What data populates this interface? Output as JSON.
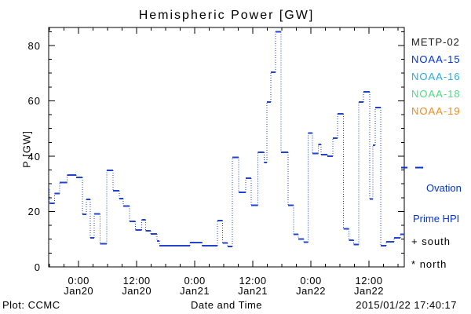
{
  "title": "Hemispheric Power [GW]",
  "footer": {
    "source": "Plot: CCMC",
    "timestamp": "2015/01/22 17:40:17"
  },
  "legend": {
    "satellites": [
      {
        "label": "METP-02",
        "color": "#1a1a1a"
      },
      {
        "label": "NOAA-15",
        "color": "#0033dd"
      },
      {
        "label": "NOAA-16",
        "color": "#29abe2"
      },
      {
        "label": "NOAA-18",
        "color": "#52d983"
      },
      {
        "label": "NOAA-19",
        "color": "#ee8d22"
      }
    ],
    "ovation": {
      "line1": "Ovation",
      "line2": "Prime HPI",
      "color": "#0033dd"
    },
    "south": {
      "symbol": "+",
      "label": "south"
    },
    "north": {
      "symbol": "*",
      "label": "north"
    }
  },
  "chart_data": {
    "type": "line",
    "step": true,
    "title": "Hemispheric Power [GW]",
    "xlabel": "Date and Time",
    "ylabel": "P [GW]",
    "line_color": "#2244cc",
    "axis_color": "#000000",
    "grid": false,
    "y_range": [
      0,
      86.5
    ],
    "yticks": [
      0,
      20,
      40,
      60,
      80
    ],
    "y_minor_step": 5,
    "x_range_hours": [
      -6.2,
      67.3
    ],
    "x_hours_origin_label": "Jan20 0:00",
    "x_minor_step_hours": 3,
    "xticks": [
      {
        "hour": 0,
        "time": "0:00",
        "date": "Jan20"
      },
      {
        "hour": 12,
        "time": "12:00",
        "date": "Jan20"
      },
      {
        "hour": 24,
        "time": "0:00",
        "date": "Jan21"
      },
      {
        "hour": 36,
        "time": "12:00",
        "date": "Jan21"
      },
      {
        "hour": 48,
        "time": "0:00",
        "date": "Jan22"
      },
      {
        "hour": 60,
        "time": "12:00",
        "date": "Jan22"
      }
    ],
    "series": [
      {
        "name": "Ovation Prime HPI",
        "style": "stepped-dotted",
        "end_hour": 67.3,
        "points_hour_gw": [
          [
            -6.2,
            28.0
          ],
          [
            -6.0,
            23.0
          ],
          [
            -5.0,
            26.5
          ],
          [
            -3.9,
            30.5
          ],
          [
            -2.4,
            33.2
          ],
          [
            -0.5,
            32.3
          ],
          [
            0.8,
            19.0
          ],
          [
            1.6,
            24.4
          ],
          [
            2.4,
            10.5
          ],
          [
            3.2,
            19.1
          ],
          [
            4.4,
            8.4
          ],
          [
            5.8,
            34.9
          ],
          [
            7.1,
            27.5
          ],
          [
            8.4,
            24.7
          ],
          [
            9.2,
            22.0
          ],
          [
            10.5,
            16.5
          ],
          [
            11.7,
            13.3
          ],
          [
            13.0,
            17.0
          ],
          [
            13.8,
            13.0
          ],
          [
            14.9,
            11.9
          ],
          [
            16.2,
            9.4
          ],
          [
            16.7,
            7.7
          ],
          [
            23.0,
            8.8
          ],
          [
            25.5,
            7.6
          ],
          [
            28.7,
            16.8
          ],
          [
            29.7,
            8.7
          ],
          [
            30.8,
            7.4
          ],
          [
            31.8,
            39.5
          ],
          [
            33.1,
            27.0
          ],
          [
            34.5,
            32.0
          ],
          [
            35.7,
            22.3
          ],
          [
            37.0,
            41.4
          ],
          [
            38.3,
            37.7
          ],
          [
            38.9,
            59.6
          ],
          [
            39.7,
            70.4
          ],
          [
            40.7,
            85.0
          ],
          [
            41.8,
            41.4
          ],
          [
            43.3,
            22.2
          ],
          [
            44.4,
            11.8
          ],
          [
            45.4,
            10.0
          ],
          [
            46.5,
            8.9
          ],
          [
            47.4,
            48.3
          ],
          [
            48.3,
            41.0
          ],
          [
            49.5,
            44.2
          ],
          [
            50.1,
            40.5
          ],
          [
            51.4,
            40.0
          ],
          [
            52.5,
            46.5
          ],
          [
            53.5,
            55.3
          ],
          [
            54.7,
            13.7
          ],
          [
            55.9,
            9.7
          ],
          [
            56.8,
            8.1
          ],
          [
            57.9,
            59.6
          ],
          [
            58.9,
            63.3
          ],
          [
            60.2,
            24.6
          ],
          [
            60.8,
            44.0
          ],
          [
            61.3,
            57.6
          ],
          [
            62.4,
            7.7
          ],
          [
            63.6,
            9.1
          ],
          [
            65.2,
            10.5
          ],
          [
            66.5,
            11.8
          ]
        ]
      }
    ]
  }
}
